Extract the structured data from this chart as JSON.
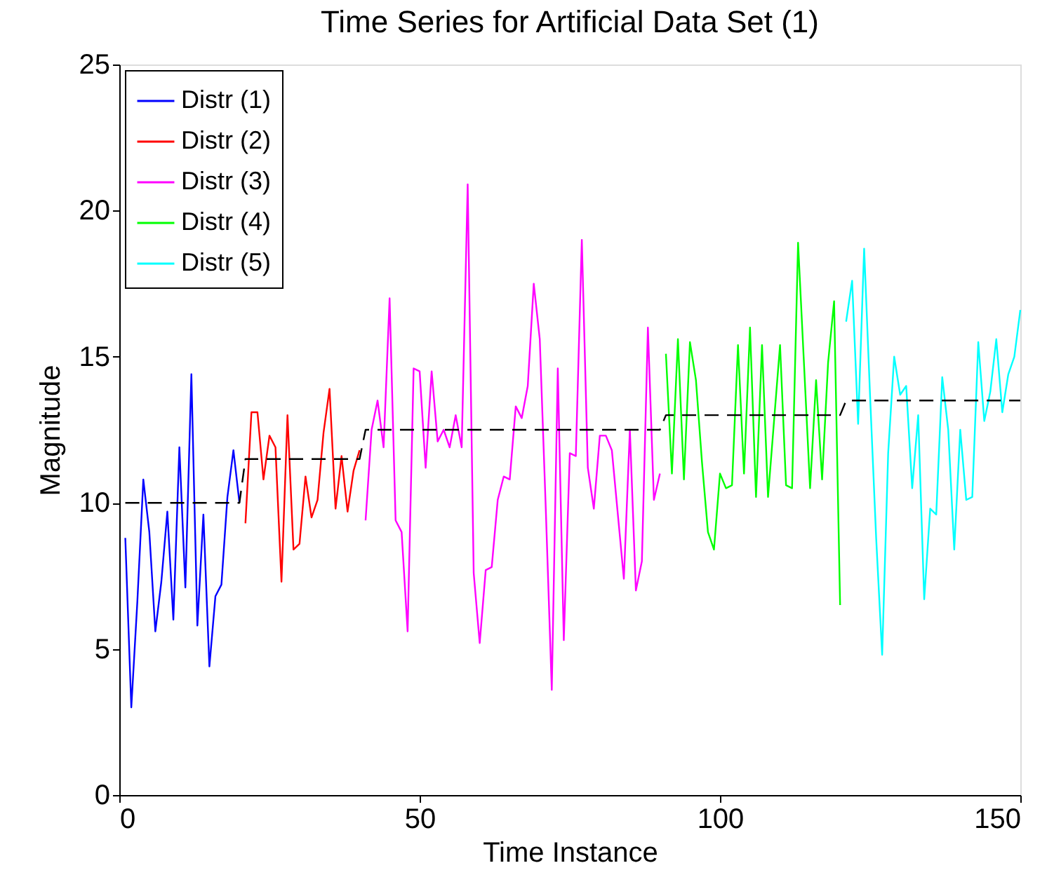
{
  "chart_data": {
    "type": "line",
    "title": "Time Series for Artificial Data Set (1)",
    "xlabel": "Time Instance",
    "ylabel": "Magnitude",
    "xlim": [
      0,
      150
    ],
    "xticks": [
      0,
      50,
      100,
      150
    ],
    "ylim": [
      0,
      25
    ],
    "yticks": [
      0,
      5,
      10,
      15,
      20,
      25
    ],
    "grid": false,
    "legend": "top left",
    "marker": "none",
    "series": [
      {
        "name": "Distr (1)",
        "color": "#0000ff",
        "line_style": "solid",
        "x": [
          1,
          2,
          3,
          4,
          5,
          6,
          7,
          8,
          9,
          10,
          11,
          12,
          13,
          14,
          15,
          16,
          17,
          18,
          19,
          20
        ],
        "values": [
          8.8,
          3.0,
          6.6,
          10.8,
          9.0,
          5.6,
          7.3,
          9.7,
          6.0,
          11.9,
          7.1,
          14.4,
          5.8,
          9.6,
          4.4,
          6.8,
          7.2,
          10.2,
          11.8,
          10.0
        ]
      },
      {
        "name": "Distr (2)",
        "color": "#ff0000",
        "line_style": "solid",
        "x": [
          21,
          22,
          23,
          24,
          25,
          26,
          27,
          28,
          29,
          30,
          31,
          32,
          33,
          34,
          35,
          36,
          37,
          38,
          39,
          40
        ],
        "values": [
          9.3,
          13.1,
          13.1,
          10.8,
          12.3,
          11.9,
          7.3,
          13.0,
          8.4,
          8.6,
          10.9,
          9.5,
          10.1,
          12.4,
          13.9,
          9.8,
          11.6,
          9.7,
          11.1,
          11.8
        ]
      },
      {
        "name": "Distr (3)",
        "color": "#ff00ff",
        "line_style": "solid",
        "x": [
          41,
          42,
          43,
          44,
          45,
          46,
          47,
          48,
          49,
          50,
          51,
          52,
          53,
          54,
          55,
          56,
          57,
          58,
          59,
          60,
          61,
          62,
          63,
          64,
          65,
          66,
          67,
          68,
          69,
          70,
          71,
          72,
          73,
          74,
          75,
          76,
          77,
          78,
          79,
          80,
          81,
          82,
          83,
          84,
          85,
          86,
          87,
          88,
          89,
          90
        ],
        "values": [
          9.4,
          12.5,
          13.5,
          11.9,
          17.0,
          9.4,
          9.0,
          5.6,
          14.6,
          14.5,
          11.2,
          14.5,
          12.1,
          12.5,
          11.9,
          13.0,
          11.9,
          20.9,
          7.6,
          5.2,
          7.7,
          7.8,
          10.1,
          10.9,
          10.8,
          13.3,
          12.9,
          14.0,
          17.5,
          15.6,
          9.8,
          3.6,
          14.6,
          5.3,
          11.7,
          11.6,
          19.0,
          11.2,
          9.8,
          12.3,
          12.3,
          11.8,
          9.6,
          7.4,
          12.5,
          7.0,
          8.0,
          16.0,
          10.1,
          11.0
        ]
      },
      {
        "name": "Distr (4)",
        "color": "#00ff00",
        "line_style": "solid",
        "x": [
          91,
          92,
          93,
          94,
          95,
          96,
          97,
          98,
          99,
          100,
          101,
          102,
          103,
          104,
          105,
          106,
          107,
          108,
          109,
          110,
          111,
          112,
          113,
          114,
          115,
          116,
          117,
          118,
          119,
          120
        ],
        "values": [
          15.1,
          11.0,
          15.6,
          10.8,
          15.5,
          14.2,
          11.4,
          9.0,
          8.4,
          11.0,
          10.5,
          10.6,
          15.4,
          11.0,
          16.0,
          10.2,
          15.4,
          10.2,
          12.8,
          15.4,
          10.6,
          10.5,
          18.9,
          14.7,
          10.5,
          14.2,
          10.8,
          14.8,
          16.9,
          6.5
        ]
      },
      {
        "name": "Distr (5)",
        "color": "#00ffff",
        "line_style": "solid",
        "x": [
          121,
          122,
          123,
          124,
          125,
          126,
          127,
          128,
          129,
          130,
          131,
          132,
          133,
          134,
          135,
          136,
          137,
          138,
          139,
          140,
          141,
          142,
          143,
          144,
          145,
          146,
          147,
          148,
          149,
          150
        ],
        "values": [
          16.2,
          17.6,
          12.7,
          18.7,
          13.6,
          8.8,
          4.8,
          11.7,
          15.0,
          13.7,
          14.0,
          10.5,
          13.0,
          6.7,
          9.8,
          9.6,
          14.3,
          12.5,
          8.4,
          12.5,
          10.1,
          10.2,
          15.5,
          12.8,
          13.8,
          15.6,
          13.1,
          14.4,
          15.0,
          16.6
        ]
      },
      {
        "color": "#000000",
        "line_style": "dashed",
        "x": [
          1,
          20,
          21,
          40,
          41,
          90,
          91,
          120,
          121,
          150
        ],
        "values": [
          10,
          10,
          11.5,
          11.5,
          12.5,
          12.5,
          13,
          13,
          13.5,
          13.5
        ]
      }
    ]
  }
}
